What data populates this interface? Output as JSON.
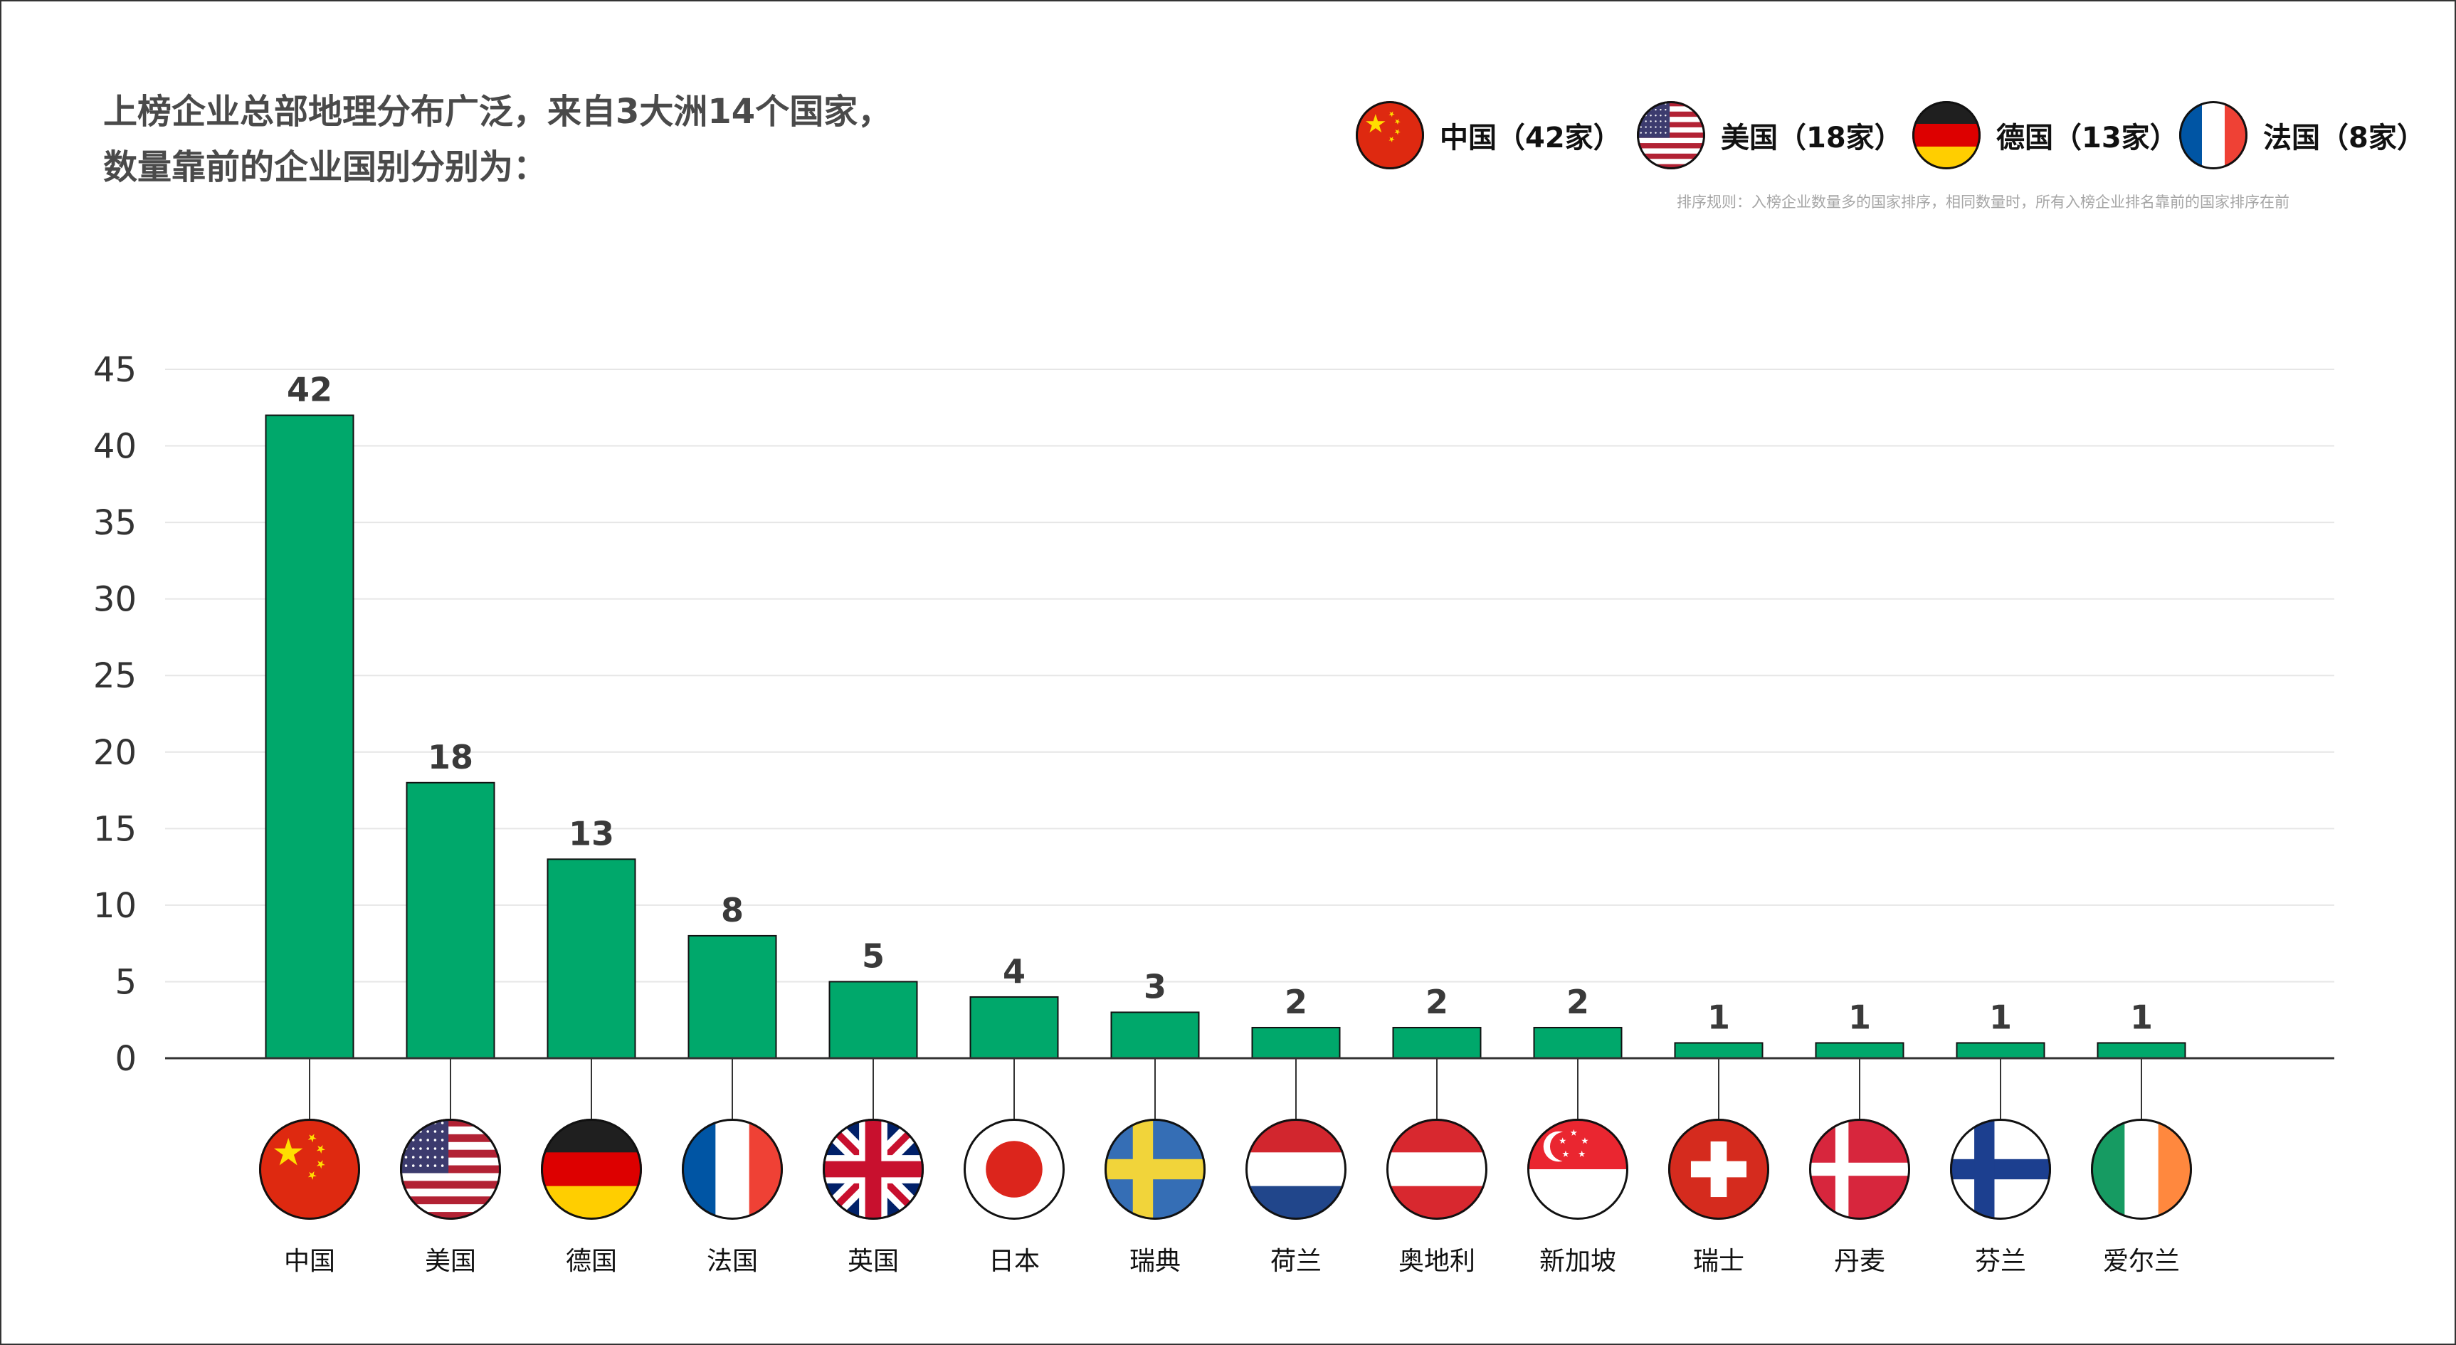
{
  "headline": {
    "line1": "上榜企业总部地理分布广泛，来自3大洲14个国家，",
    "line2": "数量靠前的企业国别分别为："
  },
  "legend": [
    {
      "flag": "china-flag",
      "label": "中国（42家）"
    },
    {
      "flag": "usa-flag",
      "label": "美国（18家）"
    },
    {
      "flag": "germany-flag",
      "label": "德国（13家）"
    },
    {
      "flag": "france-flag",
      "label": "法国（8家）"
    }
  ],
  "note": "排序规则：入榜企业数量多的国家排序，相同数量时，所有入榜企业排名靠前的国家排序在前",
  "colors": {
    "bar": "#00a86b",
    "bar_outline": "#111111",
    "grid": "#e6e6e6",
    "axis_text": "#333333",
    "value_label": "#3a3a3a"
  },
  "chart_data": {
    "type": "bar",
    "title": "",
    "xlabel": "",
    "ylabel": "",
    "categories": [
      "中国",
      "美国",
      "德国",
      "法国",
      "英国",
      "日本",
      "瑞典",
      "荷兰",
      "奥地利",
      "新加坡",
      "瑞士",
      "丹麦",
      "芬兰",
      "爱尔兰"
    ],
    "flags": [
      "china-flag",
      "usa-flag",
      "germany-flag",
      "france-flag",
      "uk-flag",
      "japan-flag",
      "sweden-flag",
      "netherlands-flag",
      "austria-flag",
      "singapore-flag",
      "switzerland-flag",
      "denmark-flag",
      "finland-flag",
      "ireland-flag"
    ],
    "values": [
      42,
      18,
      13,
      8,
      5,
      4,
      3,
      2,
      2,
      2,
      1,
      1,
      1,
      1
    ],
    "yticks": [
      0,
      5,
      10,
      15,
      20,
      25,
      30,
      35,
      40,
      45
    ],
    "ylim": [
      0,
      45
    ],
    "grid": true,
    "legend_position": "top-right"
  }
}
